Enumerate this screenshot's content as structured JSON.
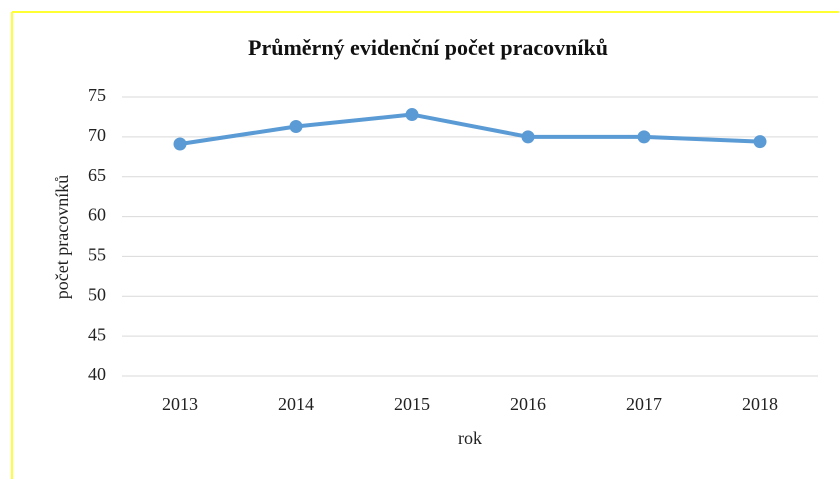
{
  "chart_data": {
    "type": "line",
    "title": "Průměrný evidenční počet pracovníků",
    "x_label": "rok",
    "y_label": "počet pracovníků",
    "categories": [
      "2013",
      "2014",
      "2015",
      "2016",
      "2017",
      "2018"
    ],
    "values": [
      69.1,
      71.3,
      72.8,
      70.0,
      70.0,
      69.4
    ],
    "color": "#5b9bd5",
    "ylim": [
      40,
      75
    ],
    "yticks": [
      40,
      45,
      50,
      55,
      60,
      65,
      70,
      75
    ],
    "grid": true
  }
}
